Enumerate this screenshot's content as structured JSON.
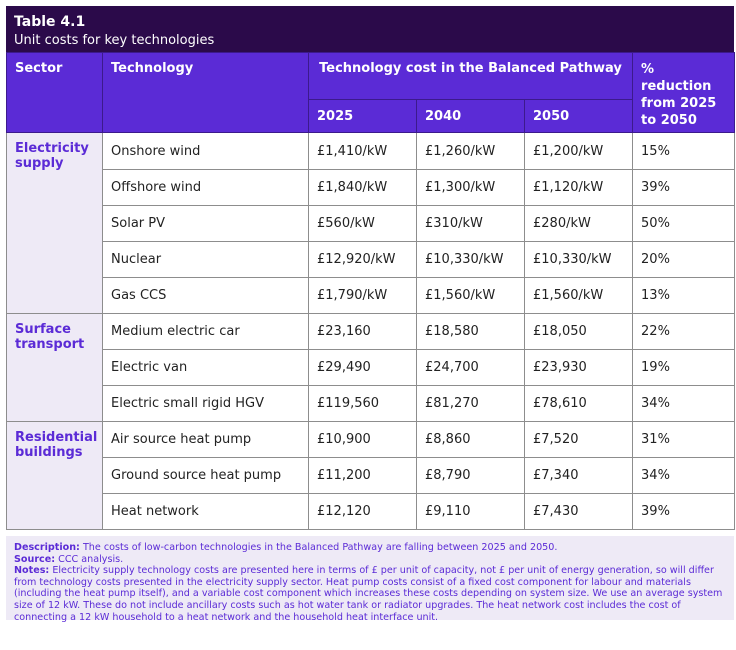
{
  "title": {
    "number": "Table 4.1",
    "subtitle": "Unit costs for key technologies"
  },
  "headers": {
    "sector": "Sector",
    "technology": "Technology",
    "cost_group": "Technology cost in the Balanced Pathway",
    "year_2025": "2025",
    "year_2040": "2040",
    "year_2050": "2050",
    "reduction": "% reduction from 2025 to 2050"
  },
  "sectors": {
    "electricity": "Electricity supply",
    "transport": "Surface transport",
    "buildings": "Residential buildings"
  },
  "rows": [
    {
      "technology": "Onshore wind",
      "c2025": "£1,410/kW",
      "c2040": "£1,260/kW",
      "c2050": "£1,200/kW",
      "reduction": "15%"
    },
    {
      "technology": "Offshore wind",
      "c2025": "£1,840/kW",
      "c2040": "£1,300/kW",
      "c2050": "£1,120/kW",
      "reduction": "39%"
    },
    {
      "technology": "Solar PV",
      "c2025": "£560/kW",
      "c2040": "£310/kW",
      "c2050": "£280/kW",
      "reduction": "50%"
    },
    {
      "technology": "Nuclear",
      "c2025": "£12,920/kW",
      "c2040": "£10,330/kW",
      "c2050": "£10,330/kW",
      "reduction": "20%"
    },
    {
      "technology": "Gas CCS",
      "c2025": "£1,790/kW",
      "c2040": "£1,560/kW",
      "c2050": "£1,560/kW",
      "reduction": "13%"
    },
    {
      "technology": "Medium electric car",
      "c2025": "£23,160",
      "c2040": "£18,580",
      "c2050": "£18,050",
      "reduction": "22%"
    },
    {
      "technology": "Electric van",
      "c2025": "£29,490",
      "c2040": "£24,700",
      "c2050": "£23,930",
      "reduction": "19%"
    },
    {
      "technology": "Electric small rigid HGV",
      "c2025": "£119,560",
      "c2040": "£81,270",
      "c2050": "£78,610",
      "reduction": "34%"
    },
    {
      "technology": "Air source heat pump",
      "c2025": "£10,900",
      "c2040": "£8,860",
      "c2050": "£7,520",
      "reduction": "31%"
    },
    {
      "technology": "Ground source heat pump",
      "c2025": "£11,200",
      "c2040": "£8,790",
      "c2050": "£7,340",
      "reduction": "34%"
    },
    {
      "technology": "Heat network",
      "c2025": "£12,120",
      "c2040": "£9,110",
      "c2050": "£7,430",
      "reduction": "39%"
    }
  ],
  "notes": {
    "description_label": "Description:",
    "description": " The costs of low-carbon technologies in the Balanced Pathway are falling between 2025 and 2050.",
    "source_label": "Source:",
    "source": " CCC analysis.",
    "notes_label": "Notes:",
    "notes": " Electricity supply technology costs are presented here in terms of £ per unit of capacity, not £ per unit of energy generation, so will differ from technology costs presented in the electricity supply sector. Heat pump costs consist of a fixed cost component for labour and materials (including the heat pump itself), and a variable cost component which increases these costs depending on system size. We use an average system size of 12 kW. These do not include ancillary costs such as hot water tank or radiator upgrades. The heat network cost includes the cost of connecting a 12 kW household to a heat network and the household heat interface unit."
  },
  "colors": {
    "title_bg": "#2b0a4a",
    "header_bg": "#5b2bd6",
    "accent_text": "#5b2bd6",
    "notes_bg": "#eeeaf6"
  }
}
